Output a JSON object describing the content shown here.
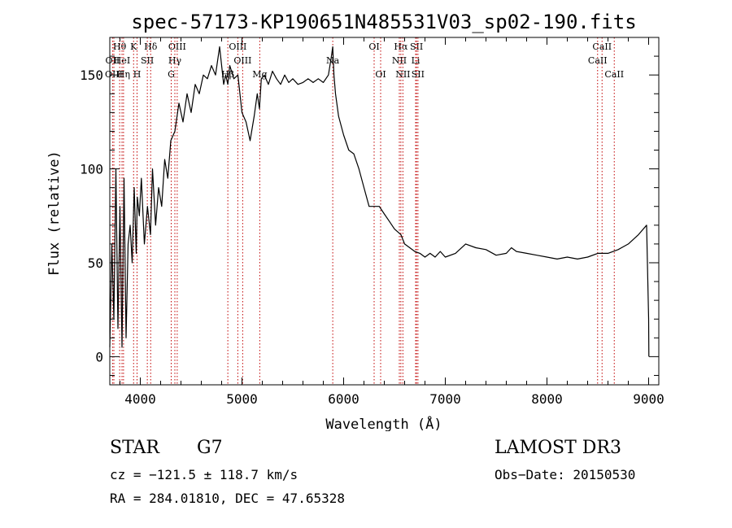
{
  "chart_data": {
    "type": "line",
    "title": "spec-57173-KP190651N485531V03_sp02-190.fits",
    "xlabel": "Wavelength (Å)",
    "ylabel": "Flux (relative)",
    "xlim": [
      3700,
      9100
    ],
    "ylim": [
      -15,
      170
    ],
    "xticks": [
      4000,
      5000,
      6000,
      7000,
      8000,
      9000
    ],
    "yticks": [
      0,
      50,
      100,
      150
    ],
    "grid": false,
    "series": [
      {
        "name": "spectrum",
        "x": [
          3700,
          3720,
          3740,
          3760,
          3780,
          3800,
          3820,
          3840,
          3860,
          3880,
          3900,
          3920,
          3940,
          3960,
          3970,
          3990,
          4010,
          4040,
          4070,
          4100,
          4120,
          4150,
          4180,
          4210,
          4240,
          4270,
          4300,
          4340,
          4380,
          4420,
          4460,
          4500,
          4540,
          4580,
          4620,
          4660,
          4700,
          4740,
          4780,
          4820,
          4840,
          4861,
          4880,
          4920,
          4960,
          5000,
          5040,
          5080,
          5120,
          5150,
          5172,
          5190,
          5220,
          5260,
          5300,
          5340,
          5380,
          5420,
          5460,
          5500,
          5550,
          5600,
          5650,
          5700,
          5750,
          5800,
          5850,
          5880,
          5893,
          5905,
          5920,
          5950,
          6000,
          6050,
          6100,
          6150,
          6200,
          6250,
          6300,
          6350,
          6400,
          6450,
          6500,
          6563,
          6600,
          6650,
          6700,
          6750,
          6800,
          6850,
          6900,
          6950,
          7000,
          7100,
          7200,
          7300,
          7400,
          7500,
          7600,
          7650,
          7700,
          7800,
          7900,
          8000,
          8100,
          8200,
          8300,
          8400,
          8500,
          8600,
          8700,
          8800,
          8900,
          8980,
          9000,
          9002
        ],
        "values": [
          5,
          60,
          20,
          100,
          15,
          80,
          5,
          95,
          10,
          60,
          70,
          50,
          90,
          55,
          85,
          75,
          95,
          60,
          80,
          65,
          100,
          70,
          90,
          80,
          105,
          95,
          115,
          120,
          135,
          125,
          140,
          130,
          145,
          140,
          150,
          148,
          155,
          150,
          165,
          145,
          150,
          145,
          155,
          148,
          150,
          130,
          125,
          115,
          128,
          140,
          132,
          148,
          150,
          145,
          152,
          148,
          145,
          150,
          146,
          148,
          145,
          146,
          148,
          146,
          148,
          146,
          150,
          160,
          165,
          150,
          140,
          128,
          118,
          110,
          108,
          100,
          90,
          80,
          80,
          80,
          76,
          72,
          68,
          65,
          60,
          58,
          56,
          55,
          53,
          55,
          53,
          56,
          53,
          55,
          60,
          58,
          57,
          54,
          55,
          58,
          56,
          55,
          54,
          53,
          52,
          53,
          52,
          53,
          55,
          55,
          57,
          60,
          65,
          70,
          20,
          0
        ]
      }
    ],
    "line_markers": [
      {
        "label": "Hθ",
        "x": 3797,
        "row": 1
      },
      {
        "label": "OII",
        "x": 3727,
        "row": 2
      },
      {
        "label": "HeI",
        "x": 3820,
        "row": 2
      },
      {
        "label": "OIII",
        "x": 3740,
        "row": 3
      },
      {
        "label": "Hη",
        "x": 3835,
        "row": 3
      },
      {
        "label": "K",
        "x": 3934,
        "row": 1
      },
      {
        "label": "SII",
        "x": 4069,
        "row": 2
      },
      {
        "label": "H",
        "x": 3968,
        "row": 3
      },
      {
        "label": "Hδ",
        "x": 4102,
        "row": 1
      },
      {
        "label": "OIII",
        "x": 4363,
        "row": 1
      },
      {
        "label": "Hγ",
        "x": 4340,
        "row": 2
      },
      {
        "label": "G",
        "x": 4304,
        "row": 3
      },
      {
        "label": "OIII",
        "x": 4959,
        "row": 1
      },
      {
        "label": "OIII",
        "x": 5007,
        "row": 2
      },
      {
        "label": "Hβ",
        "x": 4861,
        "row": 3
      },
      {
        "label": "Mg",
        "x": 5175,
        "row": 3
      },
      {
        "label": "Na",
        "x": 5893,
        "row": 2
      },
      {
        "label": "OI",
        "x": 6300,
        "row": 1
      },
      {
        "label": "OI",
        "x": 6364,
        "row": 3
      },
      {
        "label": "Hα",
        "x": 6563,
        "row": 1
      },
      {
        "label": "NII",
        "x": 6548,
        "row": 2
      },
      {
        "label": "NII",
        "x": 6583,
        "row": 3
      },
      {
        "label": "SII",
        "x": 6717,
        "row": 1
      },
      {
        "label": "Li",
        "x": 6708,
        "row": 2
      },
      {
        "label": "SII",
        "x": 6731,
        "row": 3
      },
      {
        "label": "CaII",
        "x": 8542,
        "row": 1
      },
      {
        "label": "CaII",
        "x": 8498,
        "row": 2
      },
      {
        "label": "CaII",
        "x": 8662,
        "row": 3
      }
    ]
  },
  "info": {
    "object_class": "STAR",
    "subclass": "G7",
    "survey": "LAMOST DR3",
    "cz": "cz = −121.5 ± 118.7 km/s",
    "obs_date": "Obs−Date: 20150530",
    "coords": "RA = 284.01810, DEC =  47.65328"
  },
  "colors": {
    "line": "#000000",
    "marker": "#c00000"
  }
}
